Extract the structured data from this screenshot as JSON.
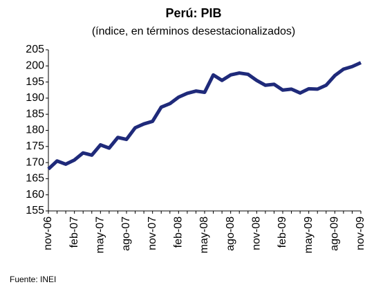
{
  "chart_data": {
    "type": "line",
    "title": "Perú: PIB",
    "subtitle": "(índice, en términos desestacionalizados)",
    "source": "Fuente: INEI",
    "categories": [
      "nov-06",
      null,
      null,
      "feb-07",
      null,
      null,
      "may-07",
      null,
      null,
      "ago-07",
      null,
      null,
      "nov-07",
      null,
      null,
      "feb-08",
      null,
      null,
      "may-08",
      null,
      null,
      "ago-08",
      null,
      null,
      "nov-08",
      null,
      null,
      "feb-09",
      null,
      null,
      "may-09",
      null,
      null,
      "ago-09",
      null,
      null,
      "nov-09"
    ],
    "series": [
      {
        "name": "PIB",
        "color": "#1f2a7a",
        "values": [
          168,
          170.5,
          169.5,
          170.8,
          173,
          172.3,
          175.5,
          174.5,
          177.8,
          177.2,
          180.8,
          182,
          182.8,
          187.2,
          188.3,
          190.3,
          191.5,
          192.2,
          191.8,
          197.2,
          195.5,
          197.2,
          197.8,
          197.4,
          195.5,
          194,
          194.3,
          192.5,
          192.8,
          191.6,
          192.9,
          192.8,
          194,
          197,
          199,
          199.8,
          201
        ]
      }
    ],
    "ylim": [
      155,
      205
    ],
    "yticks": [
      155,
      160,
      165,
      170,
      175,
      180,
      185,
      190,
      195,
      200,
      205
    ],
    "grid": false
  }
}
